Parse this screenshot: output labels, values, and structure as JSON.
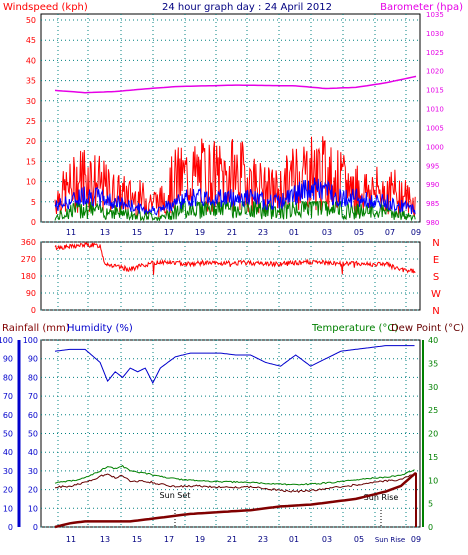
{
  "title": "24 hour graph day : 24 April 2012",
  "colors": {
    "wind_speed": "#ff0000",
    "wind_avg": "#0000ff",
    "wind_low": "#008000",
    "barometer": "#e600e6",
    "direction": "#ff0000",
    "humidity": "#0000cc",
    "temperature": "#008000",
    "dew_point": "#660000",
    "rainfall": "#800000",
    "grid": "#008080",
    "rain_axis": "#0000cc",
    "temp_axis": "#008000"
  },
  "chart_data": [
    {
      "type": "line",
      "panel": "wind-barometer",
      "left_axis_label": "Windspeed (kph)",
      "right_axis_label": "Barometer (hpa)",
      "left_ylim": [
        0,
        50
      ],
      "left_ticks": [
        "0",
        "5",
        "10",
        "15",
        "20",
        "25",
        "30",
        "35",
        "40",
        "45",
        "50"
      ],
      "right_ylim": [
        980,
        1035
      ],
      "right_ticks": [
        "980",
        "985",
        "990",
        "995",
        "1000",
        "1005",
        "1010",
        "1015",
        "1020",
        "1025",
        "1030",
        "1035"
      ],
      "x_ticks": [
        "11",
        "13",
        "15",
        "17",
        "19",
        "21",
        "23",
        "01",
        "03",
        "05",
        "07",
        "09"
      ],
      "grid": true,
      "series": [
        {
          "name": "Barometer (hpa)",
          "axis": "right",
          "x": [
            0,
            2,
            4,
            6,
            8,
            10,
            12,
            14,
            16,
            18,
            20,
            22,
            24
          ],
          "values": [
            1014.8,
            1014.2,
            1014.5,
            1015.2,
            1015.8,
            1016,
            1016.2,
            1016.1,
            1016,
            1015.3,
            1015.6,
            1016.8,
            1018.5
          ]
        },
        {
          "name": "Windspeed (kph)",
          "axis": "left",
          "x": [
            0,
            1,
            2,
            3,
            4,
            5,
            6,
            7,
            8,
            9,
            10,
            11,
            12,
            13,
            14,
            15,
            16,
            17,
            18,
            19,
            20,
            21,
            22,
            23,
            24
          ],
          "values": [
            8,
            12,
            17,
            13,
            10,
            9,
            8,
            7,
            15,
            16,
            17,
            16,
            17,
            15,
            11,
            11,
            17,
            18,
            17,
            14,
            12,
            11,
            11,
            10,
            6
          ]
        },
        {
          "name": "Average speed",
          "axis": "left",
          "x": [
            0,
            1,
            2,
            3,
            4,
            5,
            6,
            7,
            8,
            9,
            10,
            11,
            12,
            13,
            14,
            15,
            16,
            17,
            18,
            19,
            20,
            21,
            22,
            23,
            24
          ],
          "values": [
            4,
            5,
            7,
            6,
            5,
            4,
            3,
            3,
            5,
            6,
            6,
            6,
            6,
            6,
            5,
            5,
            7,
            8,
            8,
            6,
            6,
            5,
            5,
            4,
            3
          ]
        },
        {
          "name": "Low speed",
          "axis": "left",
          "x": [
            0,
            1,
            2,
            3,
            4,
            5,
            6,
            7,
            8,
            9,
            10,
            11,
            12,
            13,
            14,
            15,
            16,
            17,
            18,
            19,
            20,
            21,
            22,
            23,
            24
          ],
          "values": [
            1,
            3,
            4,
            3,
            3,
            2,
            2,
            1,
            3,
            4,
            4,
            4,
            4,
            4,
            3,
            3,
            4,
            5,
            5,
            4,
            3,
            3,
            3,
            2,
            1
          ]
        }
      ]
    },
    {
      "type": "line",
      "panel": "wind-direction",
      "left_ylim": [
        0,
        360
      ],
      "left_ticks": [
        "0",
        "90",
        "180",
        "270",
        "360"
      ],
      "right_labels": [
        "N",
        "W",
        "S",
        "E",
        "N"
      ],
      "grid": true,
      "series": [
        {
          "name": "Direction",
          "x": [
            0,
            1,
            2,
            3,
            3.3,
            4,
            5,
            6,
            7,
            8,
            9,
            10,
            11,
            12,
            13,
            14,
            15,
            16,
            17,
            18,
            19,
            20,
            21,
            22,
            23,
            24
          ],
          "values": [
            330,
            335,
            345,
            340,
            250,
            230,
            215,
            240,
            255,
            250,
            245,
            250,
            245,
            250,
            250,
            245,
            245,
            250,
            252,
            250,
            245,
            248,
            240,
            245,
            210,
            205
          ]
        }
      ]
    },
    {
      "type": "line",
      "panel": "temperature-humidity-rain",
      "left_axis_label": "Rainfall (mm)",
      "left_axis_label2": "Humidity (%)",
      "right_axis_label": "Temperature (°C)",
      "right_axis_label2": "Dew Point (°C)",
      "left_ylim": [
        0,
        100
      ],
      "left_ticks": [
        "0",
        "10",
        "20",
        "30",
        "40",
        "50",
        "60",
        "70",
        "80",
        "90",
        "100"
      ],
      "right_ylim": [
        0,
        40
      ],
      "right_ticks": [
        "0",
        "5",
        "10",
        "15",
        "20",
        "25",
        "30",
        "35",
        "40"
      ],
      "x_ticks": [
        "11",
        "13",
        "15",
        "17",
        "19",
        "21",
        "23",
        "01",
        "03",
        "05",
        "Sun Rise",
        "09"
      ],
      "annotations": [
        "Sun Set",
        "Sun Rise"
      ],
      "grid": true,
      "series": [
        {
          "name": "Humidity (%)",
          "axis": "left",
          "x": [
            0,
            1,
            2,
            3,
            3.5,
            4,
            4.5,
            5,
            5.5,
            6,
            6.5,
            7,
            8,
            9,
            10,
            11,
            12,
            13,
            14,
            15,
            16,
            17,
            18,
            19,
            20,
            21,
            22,
            23,
            24
          ],
          "values": [
            94,
            95,
            95,
            88,
            78,
            83,
            80,
            85,
            83,
            85,
            77,
            85,
            91,
            93,
            93,
            93,
            92,
            92,
            88,
            86,
            92,
            86,
            90,
            94,
            95,
            96,
            97,
            97,
            97
          ]
        },
        {
          "name": "Temperature (°C)",
          "axis": "right",
          "x": [
            0,
            1,
            2,
            3,
            3.5,
            4,
            4.5,
            5,
            6,
            7,
            8,
            9,
            10,
            11,
            12,
            13,
            14,
            15,
            16,
            17,
            18,
            19,
            20,
            21,
            22,
            23,
            24
          ],
          "values": [
            9.5,
            9.8,
            10.5,
            12,
            13,
            12.5,
            13,
            12,
            11.5,
            10.8,
            10.3,
            10,
            9.8,
            9.7,
            9.6,
            9.5,
            9.3,
            9.2,
            9.0,
            9.2,
            9.4,
            9.7,
            10,
            10.4,
            10.7,
            11,
            12.5
          ]
        },
        {
          "name": "Dew Point (°C)",
          "axis": "right",
          "x": [
            0,
            1,
            2,
            3,
            3.5,
            4,
            4.5,
            5,
            6,
            7,
            8,
            9,
            10,
            11,
            12,
            13,
            14,
            15,
            16,
            17,
            18,
            19,
            20,
            21,
            22,
            23,
            24
          ],
          "values": [
            8.5,
            8.7,
            9.5,
            10.8,
            11.5,
            10.5,
            11,
            9.8,
            9.8,
            9.2,
            8.6,
            8.8,
            8.7,
            8.5,
            8.5,
            8.6,
            8.2,
            7.8,
            7.6,
            7.8,
            8.2,
            8.6,
            9.0,
            9.5,
            9.8,
            10.2,
            11.5
          ]
        },
        {
          "name": "Rainfall (mm)",
          "axis": "left",
          "x": [
            0,
            1,
            2,
            3,
            4,
            5,
            6,
            7,
            8,
            9,
            10,
            11,
            12,
            13,
            14,
            15,
            16,
            17,
            18,
            19,
            20,
            21,
            22,
            23,
            24
          ],
          "values": [
            0,
            2,
            3,
            3,
            3,
            3,
            4,
            5,
            6,
            7,
            7.5,
            8,
            8.5,
            9,
            10,
            11,
            11.5,
            12,
            13,
            14,
            15,
            17,
            19,
            22,
            29
          ]
        }
      ]
    }
  ]
}
